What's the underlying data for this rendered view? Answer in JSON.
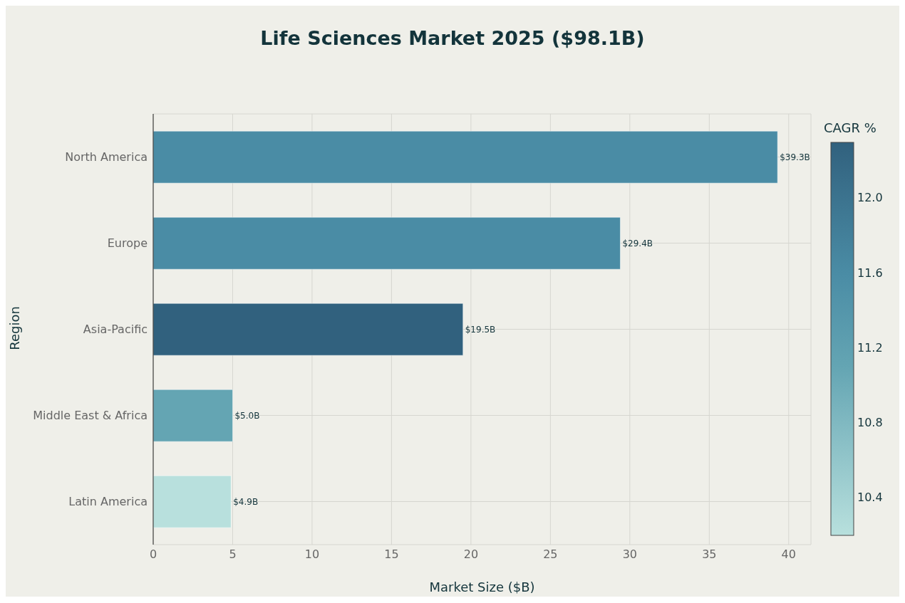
{
  "chart_data": {
    "type": "bar",
    "orientation": "horizontal",
    "title": "Life Sciences Market 2025 ($98.1B)",
    "xlabel": "Market Size ($B)",
    "ylabel": "Region",
    "categories": [
      "North America",
      "Europe",
      "Asia-Pacific",
      "Middle East & Africa",
      "Latin America"
    ],
    "values": [
      39.3,
      29.4,
      19.5,
      5.0,
      4.9
    ],
    "value_labels": [
      "$39.3B",
      "$29.4B",
      "$19.5B",
      "$5.0B",
      "$4.9B"
    ],
    "colors": [
      "#4a8ca5",
      "#4a8ca5",
      "#31617e",
      "#64a5b3",
      "#b8e0dd"
    ],
    "cvalues": [
      11.6,
      11.6,
      12.3,
      11.1,
      10.2
    ],
    "clabel": "CAGR %",
    "clim": [
      10.2,
      12.3
    ],
    "cticks": [
      10.4,
      10.8,
      11.2,
      11.6,
      {
        "value": 12,
        "label": "12.0"
      }
    ],
    "xlim": [
      0,
      41.4
    ],
    "xticks": [
      0,
      5,
      10,
      15,
      20,
      25,
      30,
      35,
      40
    ],
    "grid": true
  }
}
